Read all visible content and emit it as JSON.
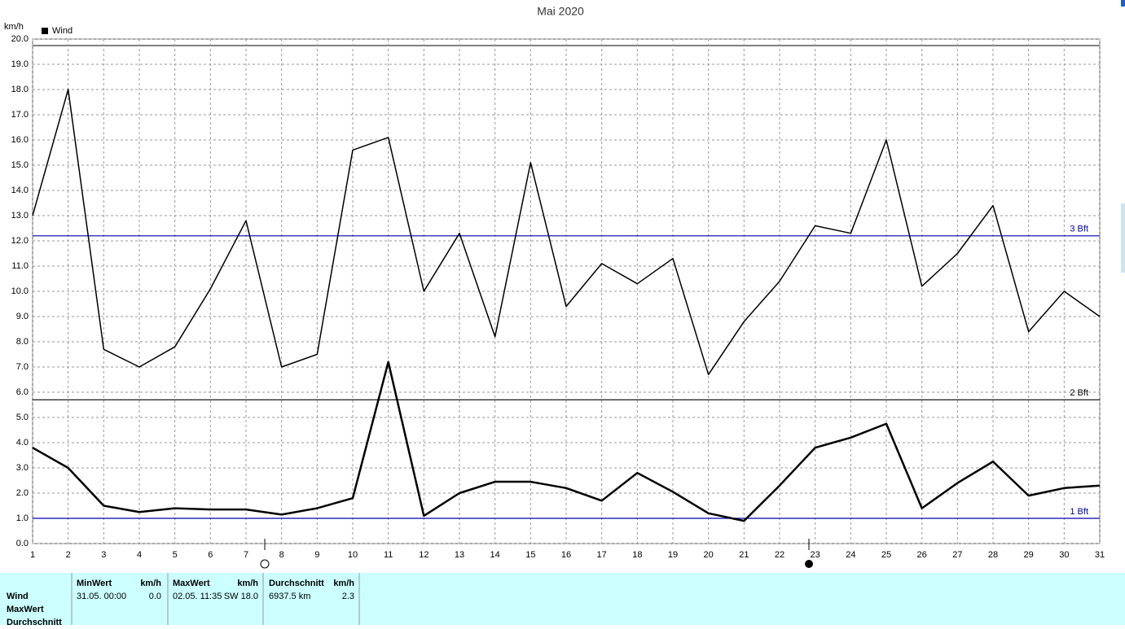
{
  "chart_data": {
    "type": "line",
    "title": "Mai 2020",
    "y_unit": "km/h",
    "legend_label": "Wind",
    "x": [
      1,
      2,
      3,
      4,
      5,
      6,
      7,
      8,
      9,
      10,
      11,
      12,
      13,
      14,
      15,
      16,
      17,
      18,
      19,
      20,
      21,
      22,
      23,
      24,
      25,
      26,
      27,
      28,
      29,
      30,
      31
    ],
    "series": [
      {
        "color": "#000000",
        "values": [
          13.0,
          18.0,
          7.7,
          7.0,
          7.8,
          10.1,
          12.8,
          7.0,
          7.5,
          15.6,
          16.1,
          10.0,
          12.3,
          8.2,
          15.1,
          9.4,
          11.1,
          10.3,
          11.3,
          6.7,
          8.8,
          10.4,
          12.6,
          12.3,
          16.0,
          10.2,
          11.5,
          13.4,
          8.4,
          10.0,
          9.0
        ]
      },
      {
        "color": "#000000",
        "values": [
          3.8,
          3.0,
          1.5,
          1.25,
          1.4,
          1.35,
          1.35,
          1.15,
          1.4,
          1.8,
          7.2,
          1.1,
          2.0,
          2.45,
          2.45,
          2.2,
          1.7,
          2.8,
          2.05,
          1.2,
          0.9,
          2.3,
          3.8,
          4.2,
          4.75,
          1.4,
          2.4,
          3.25,
          1.9,
          2.2,
          2.3
        ]
      }
    ],
    "xlim": [
      1,
      31
    ],
    "xticks": [
      1,
      2,
      3,
      4,
      5,
      6,
      7,
      8,
      9,
      10,
      11,
      12,
      13,
      14,
      15,
      16,
      17,
      18,
      19,
      20,
      21,
      22,
      23,
      24,
      25,
      26,
      27,
      28,
      29,
      30,
      31
    ],
    "ylim": [
      0,
      20
    ],
    "yticks": [
      {
        "value": 0,
        "label": "0.0"
      },
      {
        "value": 1,
        "label": "1.0"
      },
      {
        "value": 2,
        "label": "2.0"
      },
      {
        "value": 3,
        "label": "3.0"
      },
      {
        "value": 4,
        "label": "4.0"
      },
      {
        "value": 5,
        "label": "5.0"
      },
      {
        "value": 6,
        "label": "6.0"
      },
      {
        "value": 7,
        "label": "7.0"
      },
      {
        "value": 8,
        "label": "8.0"
      },
      {
        "value": 9,
        "label": "9.0"
      },
      {
        "value": 10,
        "label": "10.0"
      },
      {
        "value": 11,
        "label": "11.0"
      },
      {
        "value": 12,
        "label": "12.0"
      },
      {
        "value": 13,
        "label": "13.0"
      },
      {
        "value": 14,
        "label": "14.0"
      },
      {
        "value": 15,
        "label": "15.0"
      },
      {
        "value": 16,
        "label": "16.0"
      },
      {
        "value": 17,
        "label": "17.0"
      },
      {
        "value": 18,
        "label": "18.0"
      },
      {
        "value": 19,
        "label": "19.0"
      },
      {
        "value": 20,
        "label": "20.0"
      }
    ],
    "grid": true,
    "reference_lines": [
      {
        "value": 12.2,
        "label": "3 Bft",
        "color": "#0000aa"
      },
      {
        "value": 5.7,
        "label": "2 Bft",
        "color": "#000000"
      },
      {
        "value": 1.0,
        "label": "1 Bft",
        "color": "#0000aa"
      }
    ]
  },
  "stats": {
    "row_labels": [
      "Wind",
      "MaxWert",
      "Durchschnitt"
    ],
    "columns": [
      {
        "header": "MinWert",
        "unit": "km/h",
        "when": "31.05. 00:00",
        "value": "0.0"
      },
      {
        "header": "MaxWert",
        "unit": "km/h",
        "when": "02.05. 11:35",
        "value": "SW 18.0"
      },
      {
        "header": "Durchschnitt",
        "unit": "km/h",
        "when": "6937.5 km",
        "value": "2.3"
      }
    ]
  }
}
